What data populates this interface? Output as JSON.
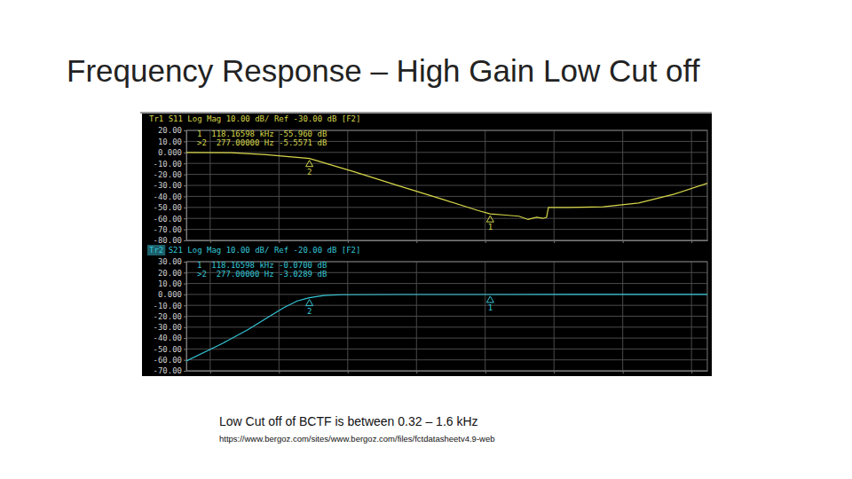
{
  "slide": {
    "title": "Frequency Response – High Gain Low Cut off",
    "caption": "Low Cut off of BCTF is between 0.32 – 1.6 kHz",
    "source": "https://www.bergoz.com/sites/www.bergoz.com/files/fctdatasheetv4.9-web"
  },
  "chart_data": [
    {
      "type": "line",
      "title": "Tr1 S11 Log Mag 10.00 dB/ Ref -30.00 dB [F2]",
      "color": "#d6d64a",
      "log": "x",
      "grid": true,
      "tick_labels": "y",
      "x": [
        4.5,
        20,
        65,
        277,
        1300,
        5600,
        25000,
        80000,
        118165.98,
        200000,
        310000,
        420000,
        560000,
        690000,
        780000,
        830000,
        1600000,
        5200000,
        17000000,
        56000000,
        170000000
      ],
      "values": [
        0,
        -0.3,
        -2,
        -5.5571,
        -18,
        -30.5,
        -43,
        -53,
        -55.96,
        -57,
        -58,
        -61,
        -59,
        -60,
        -59,
        -50,
        -50,
        -49.5,
        -46,
        -38,
        -28
      ],
      "xlim": [
        4.5,
        170000000
      ],
      "xticks": [
        10,
        100,
        1000,
        10000,
        100000,
        1000000,
        10000000,
        100000000
      ],
      "ylim": [
        -80,
        20
      ],
      "yticks": [
        {
          "value": 20,
          "label": "20.00"
        },
        {
          "value": 10,
          "label": "10.00"
        },
        {
          "value": 0,
          "label": "0.000"
        },
        {
          "value": -10,
          "label": "-10.00"
        },
        {
          "value": -20,
          "label": "-20.00"
        },
        {
          "value": -30,
          "label": "-30.00"
        },
        {
          "value": -40,
          "label": "-40.00"
        },
        {
          "value": -50,
          "label": "-50.00"
        },
        {
          "value": -60,
          "label": "-60.00"
        },
        {
          "value": -70,
          "label": "-70.00"
        },
        {
          "value": -80,
          "label": "-80.00"
        }
      ],
      "markers": [
        {
          "label": "1",
          "row": "1  118.16598 kHz -55.960 dB",
          "x": 118165.98,
          "y": -55.96
        },
        {
          "label": "2",
          "row": ">2  277.00000 Hz -5.5571 dB",
          "x": 277,
          "y": -5.5571
        }
      ]
    },
    {
      "type": "line",
      "title": "Tr2 S21 Log Mag 10.00 dB/ Ref -20.00 dB [F2]",
      "color": "#35c6d6",
      "log": "x",
      "grid": true,
      "tick_labels": "y",
      "x": [
        4.5,
        15,
        36,
        65,
        118,
        185,
        277,
        450,
        815,
        5600,
        118165.98,
        2100000,
        170000000
      ],
      "values": [
        -61,
        -45,
        -32,
        -22,
        -12,
        -6,
        -3.0289,
        -1,
        -0.3,
        -0.1,
        -0.07,
        -0.06,
        -0.05
      ],
      "xlim": [
        4.5,
        170000000
      ],
      "xticks": [
        10,
        100,
        1000,
        10000,
        100000,
        1000000,
        10000000,
        100000000
      ],
      "ylim": [
        -70,
        30
      ],
      "yticks": [
        {
          "value": 30,
          "label": "30.00"
        },
        {
          "value": 20,
          "label": "20.00"
        },
        {
          "value": 10,
          "label": "10.00"
        },
        {
          "value": 0,
          "label": "0.000"
        },
        {
          "value": -10,
          "label": "-10.00"
        },
        {
          "value": -20,
          "label": "-20.00"
        },
        {
          "value": -30,
          "label": "-30.00"
        },
        {
          "value": -40,
          "label": "-40.00"
        },
        {
          "value": -50,
          "label": "-50.00"
        },
        {
          "value": -60,
          "label": "-60.00"
        },
        {
          "value": -70,
          "label": "-70.00"
        }
      ],
      "markers": [
        {
          "label": "1",
          "row": "1  118.16598 kHz -0.0700 dB",
          "x": 118165.98,
          "y": -0.07
        },
        {
          "label": "2",
          "row": ">2  277.00000 Hz -3.0289 dB",
          "x": 277,
          "y": -3.0289
        }
      ]
    }
  ]
}
